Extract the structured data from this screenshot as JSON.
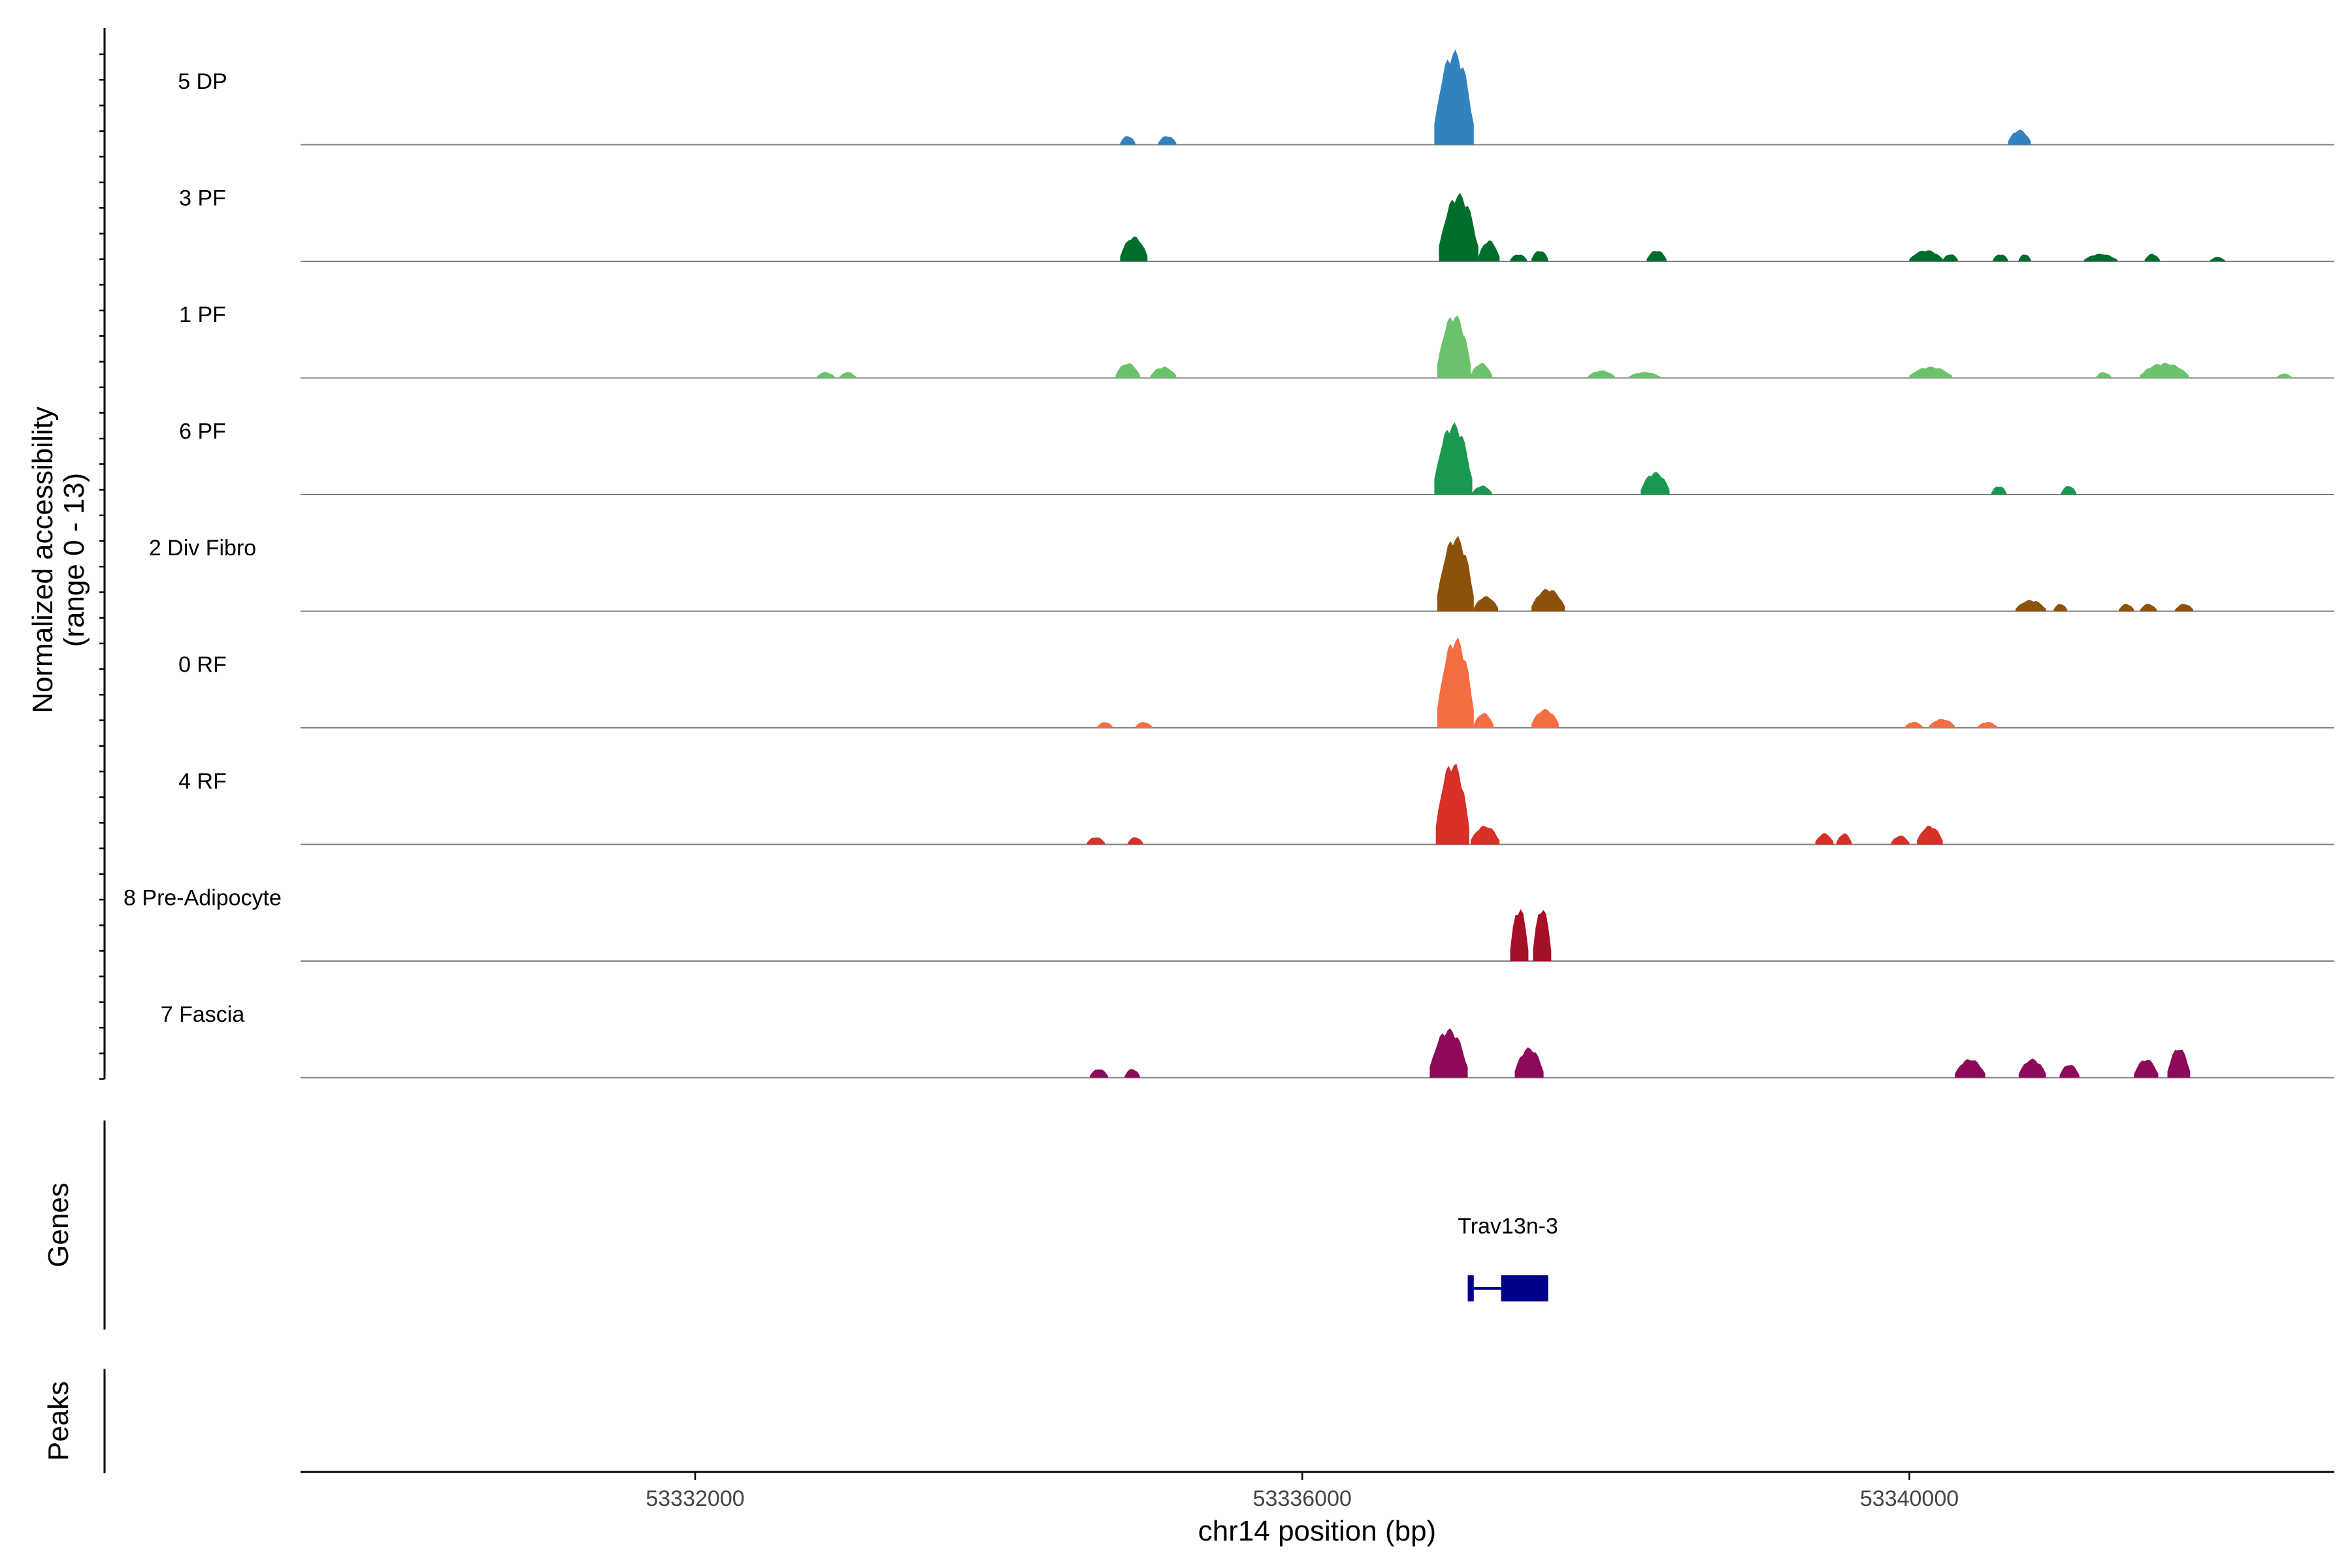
{
  "chart_data": {
    "type": "area",
    "ylabel": [
      "Normalized accessibility",
      "(range 0 - 13)"
    ],
    "xlabel": "chr14 position (bp)",
    "x_range": [
      53329400,
      53342800
    ],
    "x_ticks": [
      {
        "value": 53332000,
        "label": "53332000"
      },
      {
        "value": 53336000,
        "label": "53336000"
      },
      {
        "value": 53340000,
        "label": "53340000"
      }
    ],
    "y_range": [
      0,
      13
    ],
    "tracks": [
      {
        "name": "5 DP",
        "color": "#3182BD",
        "peaks": [
          {
            "start": 53334800,
            "end": 53334900,
            "height": 1.2
          },
          {
            "start": 53335050,
            "end": 53335170,
            "height": 1.2
          },
          {
            "start": 53336870,
            "end": 53337130,
            "height": 12.5
          },
          {
            "start": 53340650,
            "end": 53340800,
            "height": 2.0
          }
        ]
      },
      {
        "name": "3 PF",
        "color": "#006D2C",
        "peaks": [
          {
            "start": 53334800,
            "end": 53334980,
            "height": 3.3
          },
          {
            "start": 53336900,
            "end": 53337160,
            "height": 9.0
          },
          {
            "start": 53337160,
            "end": 53337300,
            "height": 2.8
          },
          {
            "start": 53337370,
            "end": 53337480,
            "height": 1.0
          },
          {
            "start": 53337510,
            "end": 53337620,
            "height": 1.5
          },
          {
            "start": 53338270,
            "end": 53338400,
            "height": 1.5
          },
          {
            "start": 53340000,
            "end": 53340220,
            "height": 1.5
          },
          {
            "start": 53340220,
            "end": 53340320,
            "height": 1.0
          },
          {
            "start": 53340550,
            "end": 53340650,
            "height": 1.0
          },
          {
            "start": 53340720,
            "end": 53340800,
            "height": 1.0
          },
          {
            "start": 53341150,
            "end": 53341370,
            "height": 1.0
          },
          {
            "start": 53341550,
            "end": 53341650,
            "height": 1.0
          },
          {
            "start": 53341980,
            "end": 53342080,
            "height": 0.6
          }
        ]
      },
      {
        "name": "1 PF",
        "color": "#6CC26C",
        "peaks": [
          {
            "start": 53332800,
            "end": 53332920,
            "height": 0.8
          },
          {
            "start": 53332950,
            "end": 53333060,
            "height": 0.8
          },
          {
            "start": 53334770,
            "end": 53334930,
            "height": 2.0
          },
          {
            "start": 53335000,
            "end": 53335170,
            "height": 1.5
          },
          {
            "start": 53336890,
            "end": 53337110,
            "height": 8.5
          },
          {
            "start": 53337110,
            "end": 53337250,
            "height": 2.0
          },
          {
            "start": 53337880,
            "end": 53338060,
            "height": 1.0
          },
          {
            "start": 53338150,
            "end": 53338360,
            "height": 0.8
          },
          {
            "start": 53340000,
            "end": 53340280,
            "height": 1.5
          },
          {
            "start": 53341230,
            "end": 53341330,
            "height": 0.8
          },
          {
            "start": 53341520,
            "end": 53341840,
            "height": 2.0
          },
          {
            "start": 53342420,
            "end": 53342520,
            "height": 0.6
          }
        ]
      },
      {
        "name": "6 PF",
        "color": "#1A9850",
        "peaks": [
          {
            "start": 53336870,
            "end": 53337120,
            "height": 9.5
          },
          {
            "start": 53337120,
            "end": 53337250,
            "height": 1.2
          },
          {
            "start": 53338230,
            "end": 53338420,
            "height": 3.0
          },
          {
            "start": 53340540,
            "end": 53340640,
            "height": 1.2
          },
          {
            "start": 53341000,
            "end": 53341100,
            "height": 1.2
          }
        ]
      },
      {
        "name": "2 Div Fibro",
        "color": "#8C510A",
        "peaks": [
          {
            "start": 53336890,
            "end": 53337130,
            "height": 10.0
          },
          {
            "start": 53337130,
            "end": 53337290,
            "height": 2.0
          },
          {
            "start": 53337510,
            "end": 53337730,
            "height": 3.0
          },
          {
            "start": 53340700,
            "end": 53340900,
            "height": 1.5
          },
          {
            "start": 53340950,
            "end": 53341040,
            "height": 1.0
          },
          {
            "start": 53341380,
            "end": 53341480,
            "height": 1.0
          },
          {
            "start": 53341520,
            "end": 53341630,
            "height": 1.0
          },
          {
            "start": 53341750,
            "end": 53341870,
            "height": 1.0
          }
        ]
      },
      {
        "name": "0 RF",
        "color": "#F46D43",
        "peaks": [
          {
            "start": 53334650,
            "end": 53334750,
            "height": 0.8
          },
          {
            "start": 53334900,
            "end": 53335010,
            "height": 0.8
          },
          {
            "start": 53336890,
            "end": 53337130,
            "height": 12.0
          },
          {
            "start": 53337130,
            "end": 53337260,
            "height": 2.0
          },
          {
            "start": 53337510,
            "end": 53337690,
            "height": 2.5
          },
          {
            "start": 53339970,
            "end": 53340090,
            "height": 0.8
          },
          {
            "start": 53340130,
            "end": 53340300,
            "height": 1.2
          },
          {
            "start": 53340450,
            "end": 53340580,
            "height": 0.8
          }
        ]
      },
      {
        "name": "4 RF",
        "color": "#D73027",
        "peaks": [
          {
            "start": 53334580,
            "end": 53334700,
            "height": 1.0
          },
          {
            "start": 53334850,
            "end": 53334950,
            "height": 1.0
          },
          {
            "start": 53336880,
            "end": 53337100,
            "height": 11.0
          },
          {
            "start": 53337110,
            "end": 53337300,
            "height": 2.5
          },
          {
            "start": 53339380,
            "end": 53339500,
            "height": 1.5
          },
          {
            "start": 53339520,
            "end": 53339620,
            "height": 1.5
          },
          {
            "start": 53339880,
            "end": 53340000,
            "height": 1.2
          },
          {
            "start": 53340050,
            "end": 53340220,
            "height": 2.5
          }
        ]
      },
      {
        "name": "8 Pre-Adipocyte",
        "color": "#A50F28",
        "peaks": [
          {
            "start": 53337370,
            "end": 53337490,
            "height": 7.2
          },
          {
            "start": 53337520,
            "end": 53337640,
            "height": 7.2
          }
        ]
      },
      {
        "name": "7 Fascia",
        "color": "#8C0A59",
        "peaks": [
          {
            "start": 53336840,
            "end": 53337090,
            "height": 6.5
          },
          {
            "start": 53337400,
            "end": 53337590,
            "height": 4.0
          },
          {
            "start": 53334600,
            "end": 53334720,
            "height": 1.2
          },
          {
            "start": 53334830,
            "end": 53334930,
            "height": 1.2
          },
          {
            "start": 53340300,
            "end": 53340500,
            "height": 2.5
          },
          {
            "start": 53340720,
            "end": 53340900,
            "height": 2.5
          },
          {
            "start": 53340990,
            "end": 53341120,
            "height": 1.8
          },
          {
            "start": 53341480,
            "end": 53341640,
            "height": 2.5
          },
          {
            "start": 53341700,
            "end": 53341850,
            "height": 4.0
          }
        ]
      }
    ],
    "genes_label": "Genes",
    "peaks_label": "Peaks",
    "genes": [
      {
        "name": "Trav13n-3",
        "color": "#00008B",
        "start": 53337090,
        "end": 53337620,
        "exons": [
          [
            53337090,
            53337130
          ],
          [
            53337310,
            53337620
          ]
        ]
      }
    ]
  }
}
